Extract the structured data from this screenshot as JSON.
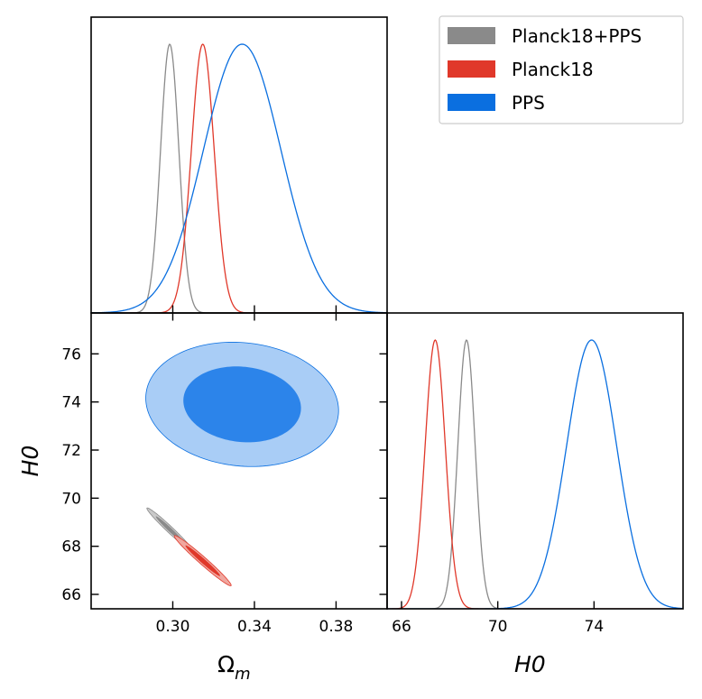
{
  "chart_data": {
    "type": "triangle-corner-plot",
    "parameters": [
      "Omega_m",
      "H0"
    ],
    "axis_labels": {
      "omega_m": "Ω",
      "omega_m_sub": "m",
      "h0": "H0"
    },
    "ranges": {
      "omega_m": [
        0.26,
        0.405
      ],
      "h0": [
        65.4,
        77.7
      ]
    },
    "ticks": {
      "omega_m": [
        0.3,
        0.34,
        0.38
      ],
      "omega_m_labels": [
        "0.30",
        "0.34",
        "0.38"
      ],
      "h0_y": [
        66,
        68,
        70,
        72,
        74,
        76
      ],
      "h0_y_labels": [
        "66",
        "68",
        "70",
        "72",
        "74",
        "76"
      ],
      "h0_x": [
        66,
        70,
        74
      ],
      "h0_x_labels": [
        "66",
        "70",
        "74"
      ]
    },
    "legend": {
      "position": "top-right",
      "entries": [
        "Planck18+PPS",
        "Planck18",
        "PPS"
      ]
    },
    "series": [
      {
        "name": "Planck18+PPS",
        "color": "#8a8a8a",
        "fill68": "#8a8a8a",
        "fill95": "#c9c9c9",
        "omega_m": {
          "mean": 0.2985,
          "sigma": 0.0045
        },
        "h0": {
          "mean": 68.7,
          "sigma": 0.36
        },
        "correlation": -0.98
      },
      {
        "name": "Planck18",
        "color": "#e0382a",
        "fill68": "#e0382a",
        "fill95": "#f0a79f",
        "omega_m": {
          "mean": 0.3147,
          "sigma": 0.0056
        },
        "h0": {
          "mean": 67.4,
          "sigma": 0.42
        },
        "correlation": -0.98
      },
      {
        "name": "PPS",
        "color": "#0a6fe0",
        "fill68": "#2c84ea",
        "fill95": "#a9cdf6",
        "omega_m": {
          "mean": 0.334,
          "sigma": 0.019
        },
        "h0": {
          "mean": 73.9,
          "sigma": 1.04
        },
        "correlation": -0.1
      }
    ]
  }
}
